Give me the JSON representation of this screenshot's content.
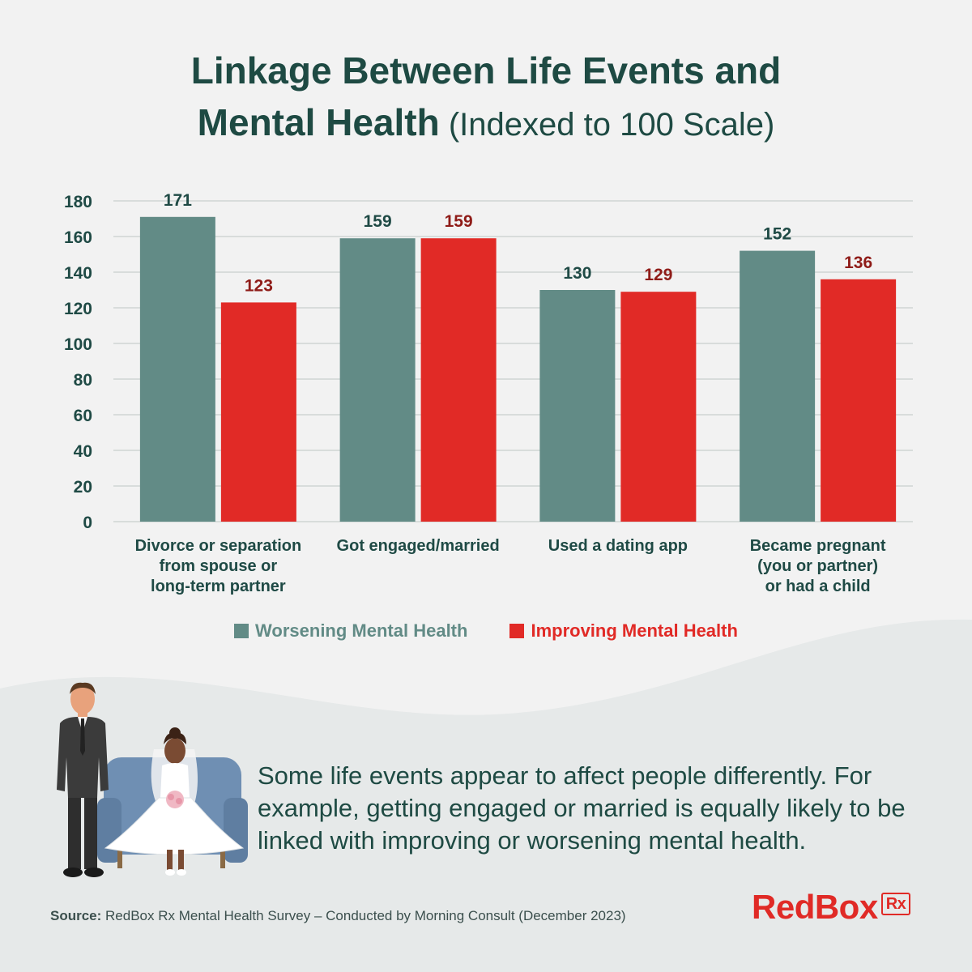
{
  "title": {
    "line1": "Linkage Between Life Events and",
    "line2_bold": "Mental Health",
    "line2_sub": " (Indexed to 100 Scale)"
  },
  "colors": {
    "worsening": "#628b86",
    "improving": "#e12a26",
    "improving_text": "#8f1c18",
    "axis_text": "#1f4a45",
    "grid": "#d8dcdb"
  },
  "chart_data": {
    "type": "bar",
    "title": "Linkage Between Life Events and Mental Health (Indexed to 100 Scale)",
    "categories": [
      "Divorce or separation\nfrom spouse or\nlong-term partner",
      "Got engaged/married",
      "Used a dating app",
      "Became pregnant\n(you or partner)\nor had a child"
    ],
    "series": [
      {
        "name": "Worsening Mental Health",
        "values": [
          171,
          159,
          130,
          152
        ]
      },
      {
        "name": "Improving Mental Health",
        "values": [
          123,
          159,
          129,
          136
        ]
      }
    ],
    "ylim": [
      0,
      180
    ],
    "yticks": [
      0,
      20,
      40,
      60,
      80,
      100,
      120,
      140,
      160,
      180
    ],
    "grid": true,
    "legend_position": "bottom",
    "data_labels": true
  },
  "legend": {
    "worsening": "Worsening Mental Health",
    "improving": "Improving Mental Health"
  },
  "caption": "Some life events appear to affect people differently. For example, getting engaged or married is equally likely to be linked with improving or worsening mental health.",
  "source": {
    "label": "Source:",
    "text": " RedBox Rx Mental Health Survey – Conducted by Morning Consult (December 2023)"
  },
  "logo": {
    "text": "RedBox",
    "badge": "Rx"
  },
  "illustration": {
    "icon": "bride-and-groom-illustration"
  }
}
